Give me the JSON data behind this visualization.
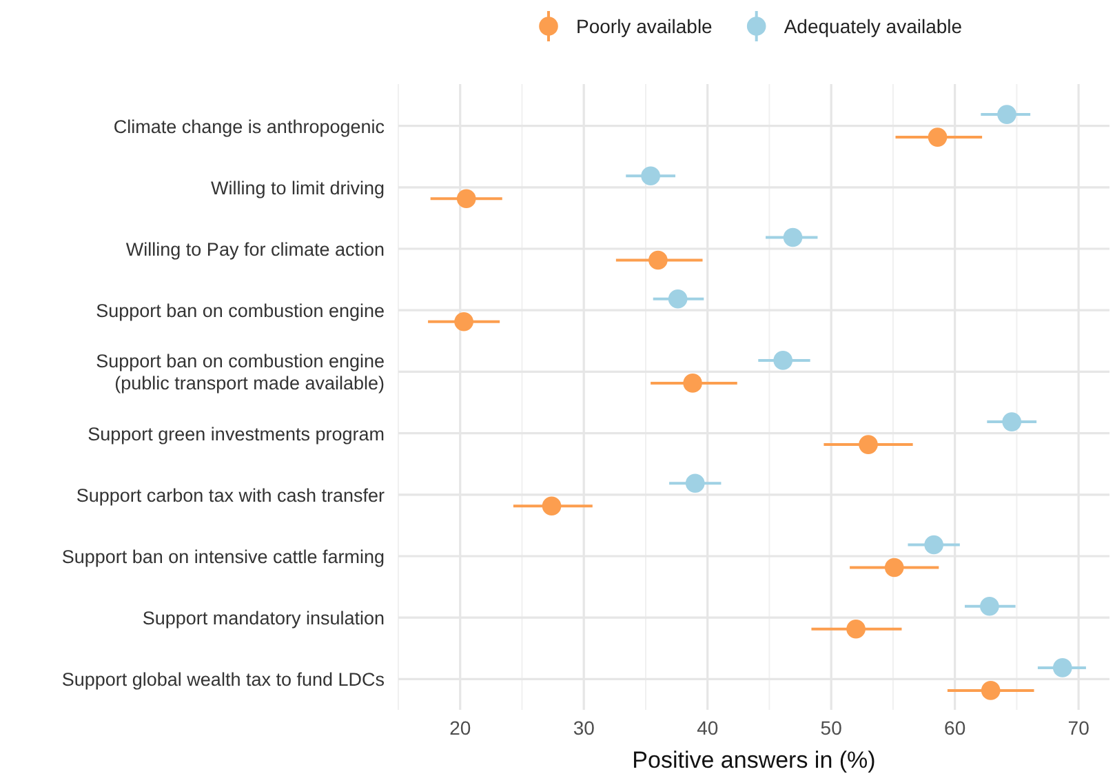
{
  "chart_data": {
    "type": "scatter",
    "orientation": "horizontal",
    "xlabel": "Positive answers in (%)",
    "categories": [
      "Climate change is anthropogenic",
      "Willing to limit driving",
      "Willing to Pay for climate action",
      "Support ban on combustion engine",
      "Support ban on combustion engine\n(public transport made available)",
      "Support green investments program",
      "Support carbon tax with cash transfer",
      "Support ban on intensive cattle farming",
      "Support mandatory insulation",
      "Support global wealth tax to fund LDCs"
    ],
    "series": [
      {
        "name": "Poorly available",
        "color": "#fc9e4f",
        "values": [
          58.6,
          20.5,
          36.0,
          20.3,
          38.8,
          53.0,
          27.4,
          55.1,
          52.0,
          62.9
        ],
        "errors": [
          [
            55.2,
            62.2
          ],
          [
            17.6,
            23.4
          ],
          [
            32.6,
            39.6
          ],
          [
            17.4,
            23.2
          ],
          [
            35.4,
            42.4
          ],
          [
            49.4,
            56.6
          ],
          [
            24.3,
            30.7
          ],
          [
            51.5,
            58.7
          ],
          [
            48.4,
            55.7
          ],
          [
            59.4,
            66.4
          ]
        ]
      },
      {
        "name": "Adequately available",
        "color": "#9fd1e4",
        "values": [
          64.2,
          35.4,
          46.9,
          37.6,
          46.1,
          64.6,
          39.0,
          58.3,
          62.8,
          68.7
        ],
        "errors": [
          [
            62.1,
            66.1
          ],
          [
            33.4,
            37.4
          ],
          [
            44.7,
            48.9
          ],
          [
            35.6,
            39.7
          ],
          [
            44.1,
            48.3
          ],
          [
            62.6,
            66.6
          ],
          [
            36.9,
            41.1
          ],
          [
            56.2,
            60.4
          ],
          [
            60.8,
            64.9
          ],
          [
            66.7,
            70.6
          ]
        ]
      }
    ],
    "xlim": [
      15,
      72.5
    ],
    "xticks": [
      20,
      30,
      40,
      50,
      60,
      70
    ],
    "grid": true,
    "legend": "top",
    "marker": "circle"
  }
}
